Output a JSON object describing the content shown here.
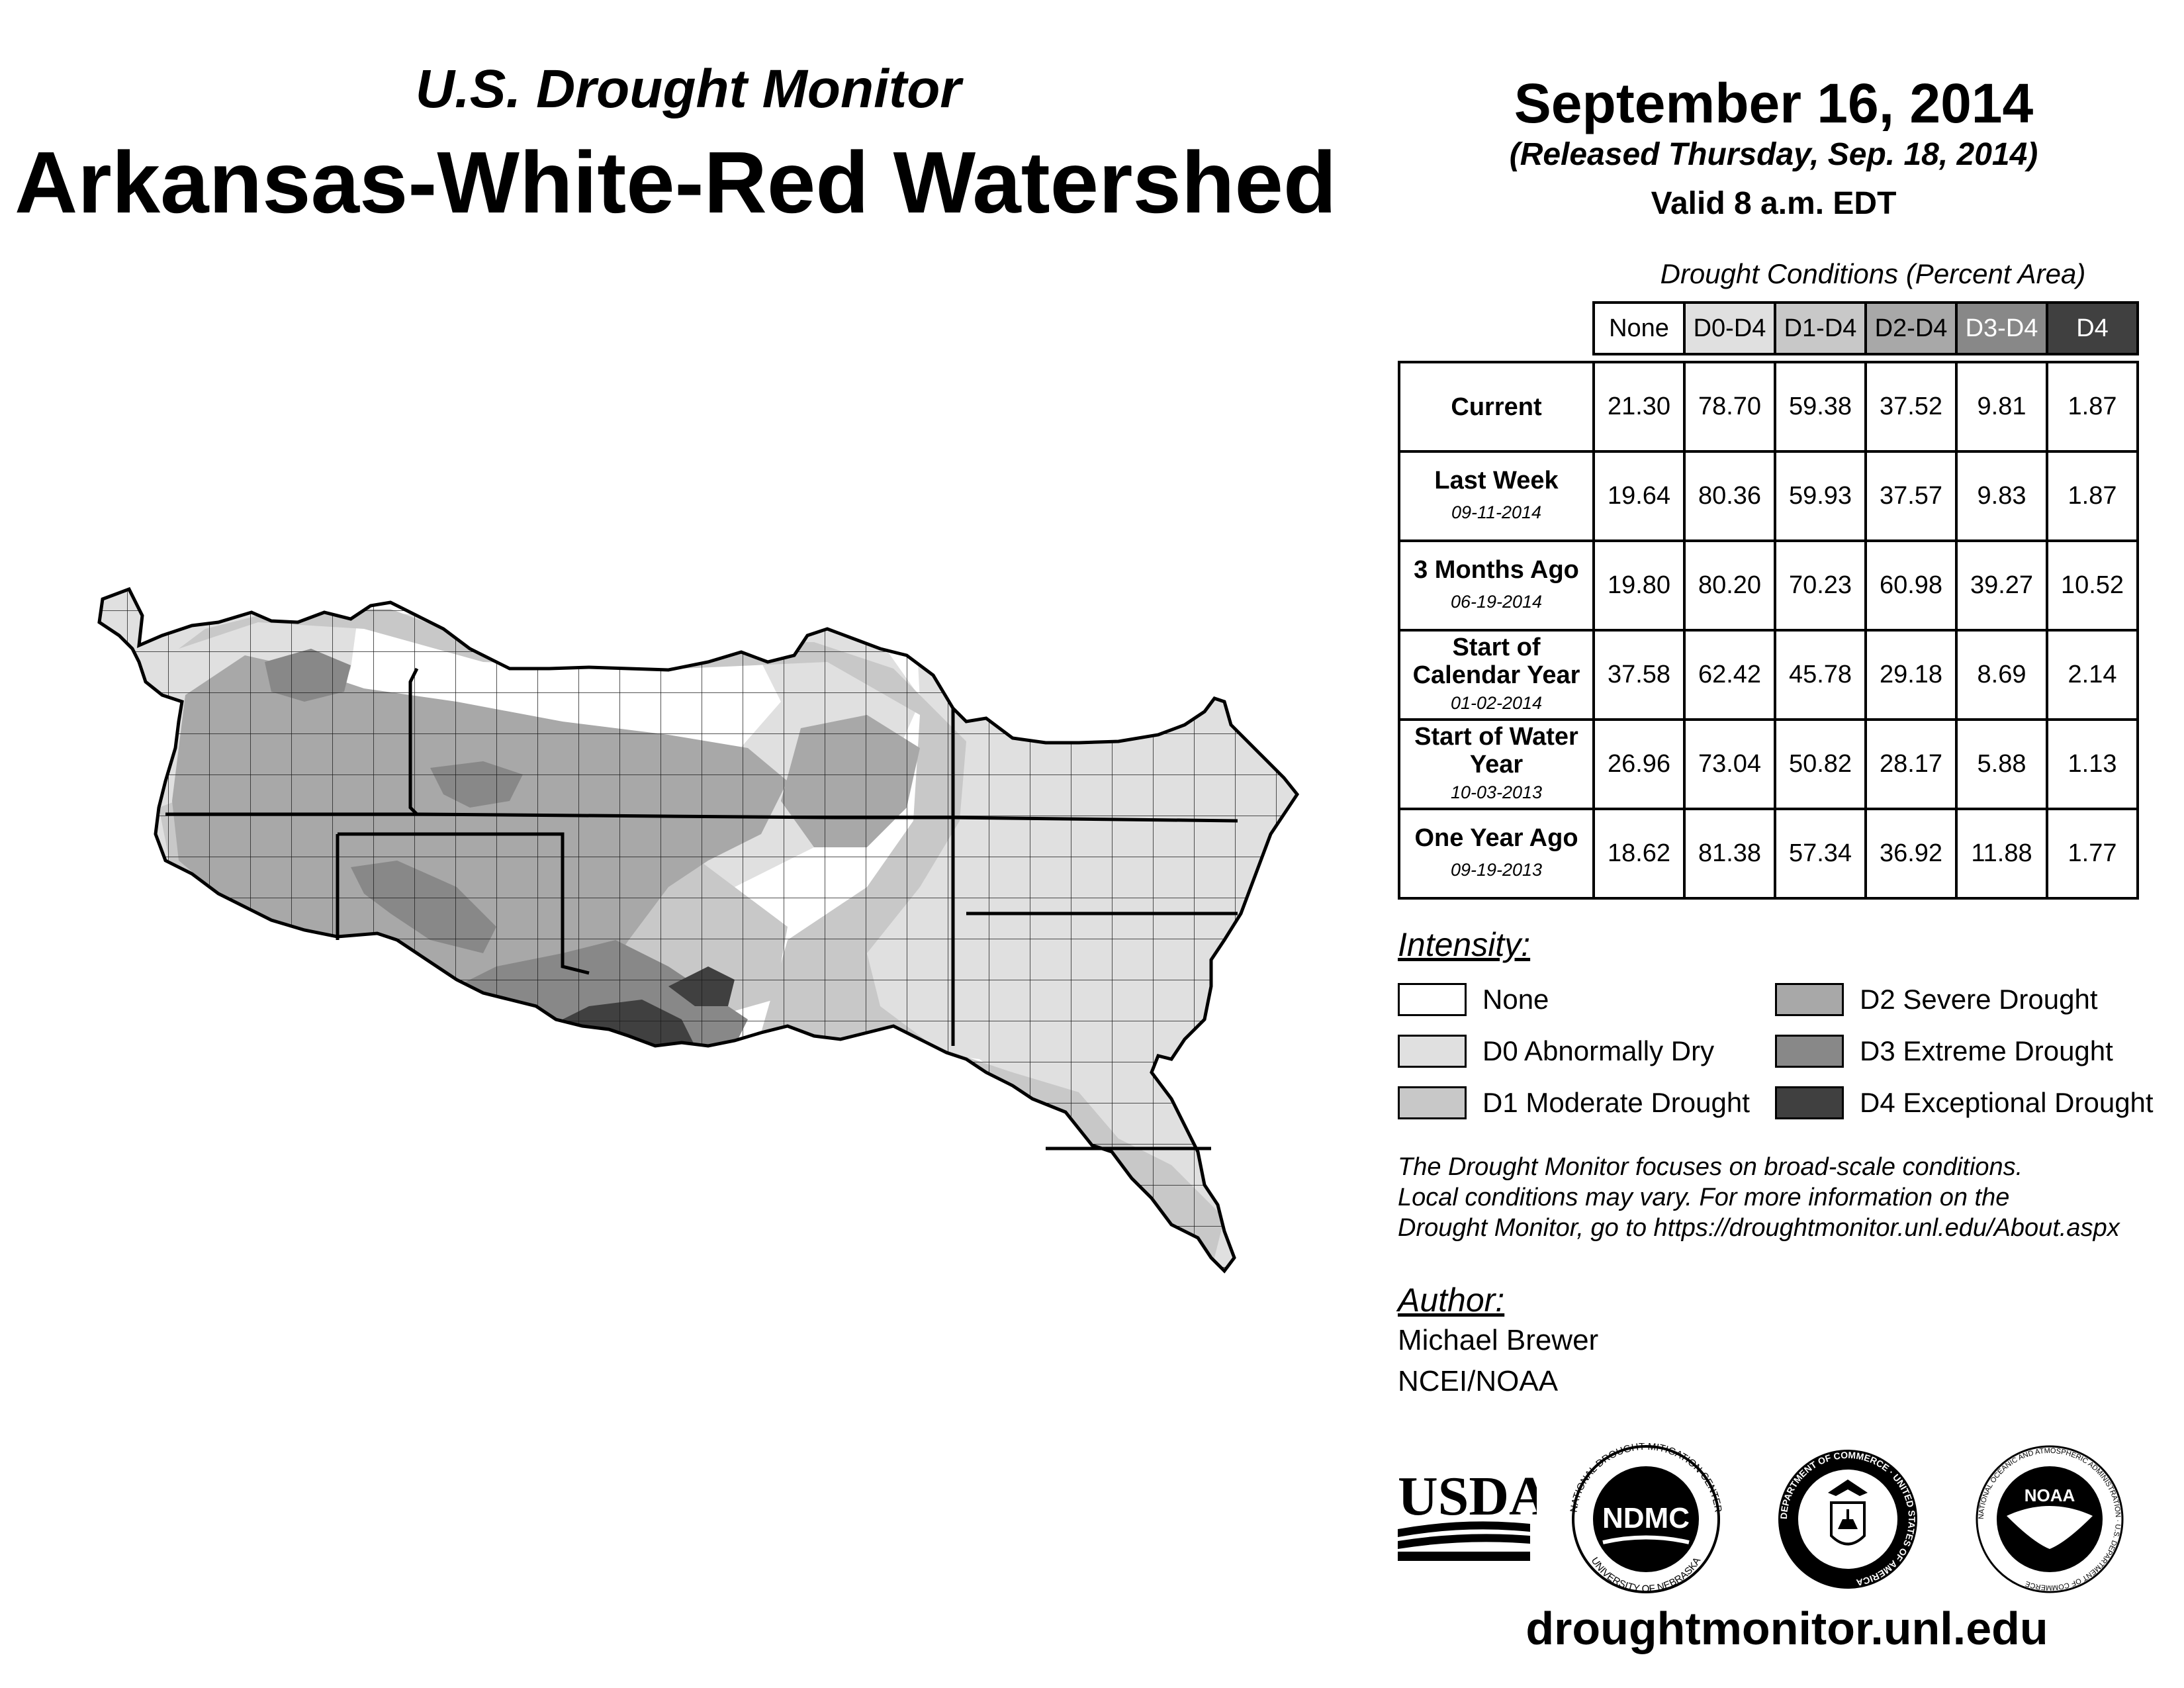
{
  "header": {
    "subtitle": "U.S. Drought Monitor",
    "title": "Arkansas-White-Red Watershed",
    "date": "September 16, 2014",
    "released": "(Released Thursday, Sep. 18, 2014)",
    "valid": "Valid 8 a.m. EDT"
  },
  "table": {
    "caption": "Drought Conditions (Percent Area)",
    "columns": [
      "None",
      "D0-D4",
      "D1-D4",
      "D2-D4",
      "D3-D4",
      "D4"
    ],
    "rows": [
      {
        "label": "Current",
        "date": "",
        "values": [
          "21.30",
          "78.70",
          "59.38",
          "37.52",
          "9.81",
          "1.87"
        ]
      },
      {
        "label": "Last Week",
        "date": "09-11-2014",
        "values": [
          "19.64",
          "80.36",
          "59.93",
          "37.57",
          "9.83",
          "1.87"
        ]
      },
      {
        "label": "3 Months Ago",
        "date": "06-19-2014",
        "values": [
          "19.80",
          "80.20",
          "70.23",
          "60.98",
          "39.27",
          "10.52"
        ]
      },
      {
        "label": "Start of Calendar Year",
        "date": "01-02-2014",
        "values": [
          "37.58",
          "62.42",
          "45.78",
          "29.18",
          "8.69",
          "2.14"
        ]
      },
      {
        "label": "Start of Water Year",
        "date": "10-03-2013",
        "values": [
          "26.96",
          "73.04",
          "50.82",
          "28.17",
          "5.88",
          "1.13"
        ]
      },
      {
        "label": "One Year Ago",
        "date": "09-19-2013",
        "values": [
          "18.62",
          "81.38",
          "57.34",
          "36.92",
          "11.88",
          "1.77"
        ]
      }
    ]
  },
  "legend": {
    "title": "Intensity:",
    "items": [
      {
        "label": "None",
        "color": "#ffffff"
      },
      {
        "label": "D0 Abnormally Dry",
        "color": "#e0e0e0"
      },
      {
        "label": "D1 Moderate Drought",
        "color": "#c8c8c8"
      },
      {
        "label": "D2 Severe Drought",
        "color": "#a8a8a8"
      },
      {
        "label": "D3 Extreme Drought",
        "color": "#888888"
      },
      {
        "label": "D4 Exceptional Drought",
        "color": "#404040"
      }
    ]
  },
  "note": {
    "line1": "The Drought Monitor focuses on broad-scale conditions.",
    "line2": "Local conditions may vary. For more information on the",
    "line3": "Drought Monitor, go to https://droughtmonitor.unl.edu/About.aspx"
  },
  "author": {
    "title": "Author:",
    "name": "Michael Brewer",
    "org": "NCEI/NOAA"
  },
  "logos": {
    "usda": "USDA",
    "ndmc": "NDMC",
    "ndmc_ring_top": "NATIONAL DROUGHT MITIGATION CENTER",
    "ndmc_ring_bottom": "UNIVERSITY OF NEBRASKA",
    "doc_ring": "DEPARTMENT OF COMMERCE · UNITED STATES OF AMERICA",
    "noaa": "NOAA",
    "noaa_ring": "NATIONAL OCEANIC AND ATMOSPHERIC ADMINISTRATION · U.S. DEPARTMENT OF COMMERCE"
  },
  "website": "droughtmonitor.unl.edu"
}
